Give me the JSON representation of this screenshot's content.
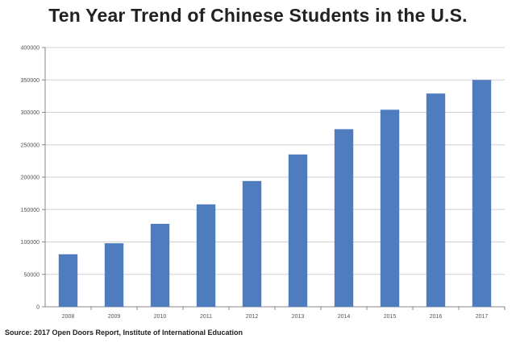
{
  "chart_data": {
    "type": "bar",
    "title": "Ten Year Trend of Chinese Students in the U.S.",
    "categories": [
      "2008",
      "2009",
      "2010",
      "2011",
      "2012",
      "2013",
      "2014",
      "2015",
      "2016",
      "2017"
    ],
    "values": [
      81000,
      98000,
      128000,
      158000,
      194000,
      235000,
      274000,
      304000,
      329000,
      350000
    ],
    "ylim": [
      0,
      400000
    ],
    "yticks": [
      0,
      50000,
      100000,
      150000,
      200000,
      250000,
      300000,
      350000,
      400000
    ],
    "grid": true,
    "bar_color": "#4f7cbf",
    "source": "Source: 2017 Open Doors Report, Institute of International Education"
  }
}
